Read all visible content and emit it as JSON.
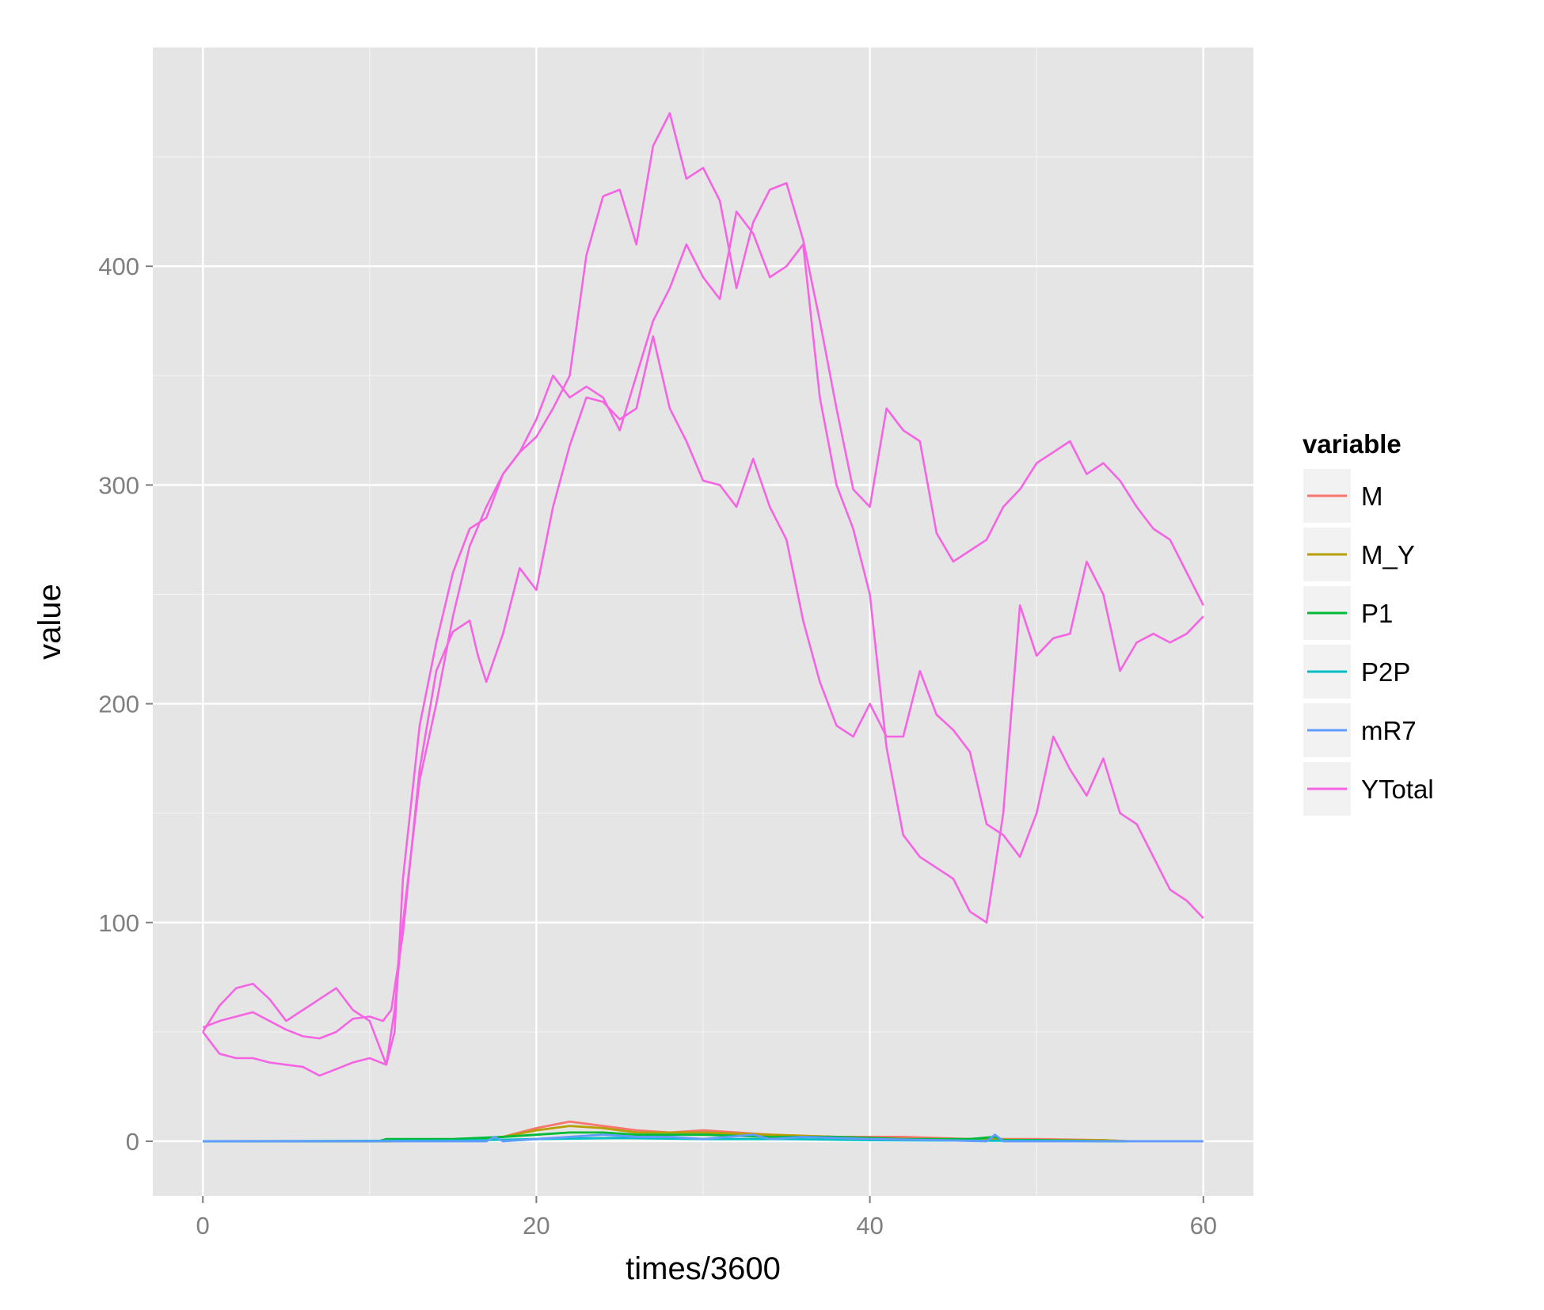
{
  "chart_data": {
    "type": "line",
    "title": "",
    "xlabel": "times/3600",
    "ylabel": "value",
    "xlim": [
      -3,
      63
    ],
    "ylim": [
      -25,
      500
    ],
    "x_ticks": [
      0,
      20,
      40,
      60
    ],
    "y_ticks": [
      0,
      100,
      200,
      300,
      400
    ],
    "grid": true,
    "legend": {
      "title": "variable",
      "position": "right"
    },
    "colors": {
      "M": "#F8766D",
      "M_Y": "#B79F00",
      "P1": "#00BA38",
      "P2P": "#00BFC4",
      "mR7": "#619CFF",
      "YTotal": "#F564E3"
    },
    "series": [
      {
        "name": "YTotal",
        "traces": [
          {
            "x": [
              0,
              1,
              2,
              3,
              4,
              5,
              6,
              7,
              8,
              9,
              10,
              10.8,
              11.3,
              12,
              13,
              14,
              15,
              16,
              16.5,
              17,
              18,
              19,
              20,
              21,
              22,
              23,
              24,
              25,
              26,
              27,
              28,
              29,
              30,
              31,
              32,
              33,
              34,
              35,
              36,
              37,
              38,
              39,
              40,
              41,
              42,
              43,
              44,
              45,
              46,
              47,
              48,
              49,
              50,
              51,
              52,
              53,
              54,
              55,
              56,
              57,
              58,
              59,
              60
            ],
            "y": [
              52,
              55,
              57,
              59,
              55,
              51,
              48,
              47,
              50,
              56,
              57,
              55,
              60,
              95,
              170,
              215,
              233,
              238,
              222,
              210,
              232,
              262,
              252,
              290,
              318,
              340,
              338,
              330,
              335,
              368,
              335,
              320,
              302,
              300,
              290,
              312,
              290,
              275,
              238,
              210,
              190,
              185,
              200,
              185,
              185,
              215,
              195,
              188,
              178,
              145,
              140,
              130,
              150,
              185,
              170,
              158,
              175,
              150,
              145,
              130,
              115,
              110,
              102
            ]
          },
          {
            "x": [
              0,
              1,
              2,
              3,
              4,
              5,
              6,
              7,
              8,
              9,
              10,
              11,
              11.5,
              12,
              13,
              14,
              15,
              16,
              17,
              17.5,
              18,
              19,
              20,
              21,
              22,
              23,
              24,
              25,
              26,
              27,
              28,
              29,
              30,
              31,
              32,
              33,
              34,
              35,
              36,
              37,
              38,
              39,
              40,
              41,
              42,
              43,
              44,
              45,
              46,
              47,
              48,
              49,
              50,
              51,
              52,
              53,
              54,
              55,
              56,
              57,
              58,
              59,
              60
            ],
            "y": [
              50,
              62,
              70,
              72,
              65,
              55,
              60,
              65,
              70,
              60,
              55,
              35,
              50,
              120,
              190,
              228,
              260,
              280,
              285,
              295,
              305,
              315,
              330,
              350,
              340,
              345,
              340,
              325,
              350,
              375,
              390,
              410,
              395,
              385,
              425,
              415,
              395,
              400,
              410,
              340,
              300,
              280,
              250,
              180,
              140,
              130,
              125,
              120,
              105,
              100,
              150,
              245,
              222,
              230,
              232,
              265,
              250,
              215,
              228,
              232,
              228,
              232,
              240
            ]
          },
          {
            "x": [
              0,
              0.5,
              1,
              2,
              3,
              4,
              5,
              6,
              7,
              8,
              9,
              10,
              11,
              11.5,
              12,
              13,
              14,
              15,
              16,
              17,
              18,
              19,
              20,
              21,
              22,
              23,
              24,
              25,
              26,
              27,
              28,
              29,
              30,
              31,
              32,
              33,
              34,
              35,
              36,
              37,
              38,
              39,
              40,
              41,
              42,
              43,
              44,
              45,
              46,
              47,
              48,
              49,
              50,
              51,
              52,
              53,
              54,
              55,
              56,
              57,
              58,
              59,
              60
            ],
            "y": [
              50,
              45,
              40,
              38,
              38,
              36,
              35,
              34,
              30,
              33,
              36,
              38,
              35,
              60,
              100,
              165,
              200,
              240,
              272,
              290,
              305,
              315,
              322,
              335,
              350,
              405,
              432,
              435,
              410,
              455,
              470,
              440,
              445,
              430,
              390,
              420,
              435,
              438,
              412,
              375,
              335,
              298,
              290,
              335,
              325,
              320,
              278,
              265,
              270,
              275,
              290,
              298,
              310,
              315,
              320,
              305,
              310,
              302,
              290,
              280,
              275,
              260,
              245
            ]
          }
        ]
      },
      {
        "name": "M",
        "x": [
          0,
          11,
          15,
          18,
          20,
          22,
          24,
          26,
          28,
          30,
          34,
          38,
          42,
          46,
          50,
          54,
          55.5
        ],
        "y": [
          0,
          0,
          0.5,
          2,
          6,
          9,
          7,
          5,
          4,
          5,
          3,
          2,
          2,
          1,
          1,
          0.5,
          0
        ]
      },
      {
        "name": "M_Y",
        "x": [
          0,
          11,
          15,
          18,
          20,
          22,
          24,
          26,
          28,
          30,
          34,
          38,
          42,
          46,
          50,
          54,
          55.5
        ],
        "y": [
          0,
          0,
          0.4,
          2,
          5,
          7,
          6,
          4,
          4,
          4,
          3,
          2,
          1,
          1,
          0.5,
          0.5,
          0
        ]
      },
      {
        "name": "P1",
        "x": [
          0,
          10.5,
          11,
          15,
          18,
          20,
          22,
          24,
          26,
          28,
          30,
          34,
          38,
          42,
          46,
          47.5,
          48,
          50,
          54,
          55.5
        ],
        "y": [
          0,
          0,
          1,
          1,
          2,
          3,
          4,
          4,
          3,
          3,
          3,
          2,
          2,
          1,
          1,
          2,
          0.5,
          0.5,
          0,
          0
        ]
      },
      {
        "name": "P2P",
        "x": [
          0,
          15,
          20,
          25,
          30,
          35,
          40,
          45,
          50,
          55.5
        ],
        "y": [
          0,
          0.3,
          1,
          1.5,
          1,
          1,
          0.5,
          0.3,
          0.2,
          0
        ]
      },
      {
        "name": "mR7",
        "x": [
          0,
          17,
          17.5,
          18,
          20,
          22,
          24,
          26,
          28,
          30,
          33,
          34,
          36,
          40,
          44,
          47,
          47.5,
          48,
          50,
          55,
          60
        ],
        "y": [
          0,
          0,
          2,
          0,
          1,
          2,
          3,
          2,
          2,
          1,
          3,
          1,
          2,
          1,
          0.5,
          0,
          3,
          0,
          0,
          0,
          0
        ]
      }
    ],
    "legend_order": [
      "M",
      "M_Y",
      "P1",
      "P2P",
      "mR7",
      "YTotal"
    ]
  }
}
